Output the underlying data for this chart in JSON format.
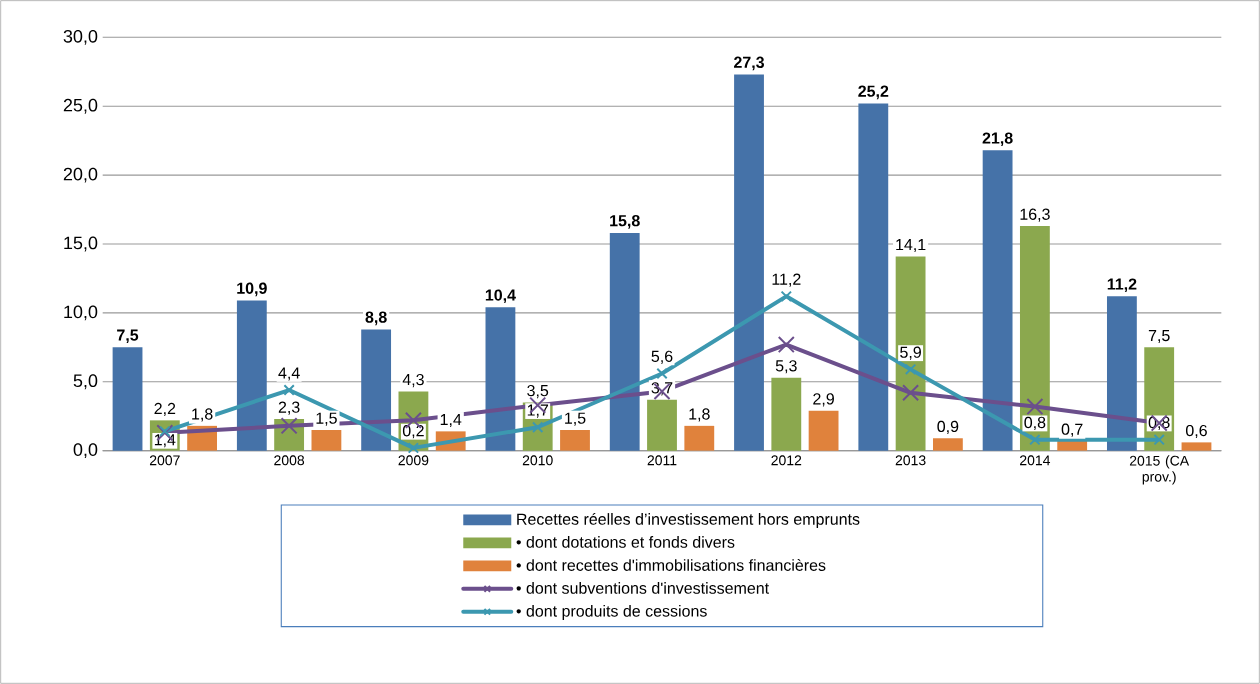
{
  "chart_data": {
    "type": "bar",
    "categories": [
      "2007",
      "2008",
      "2009",
      "2010",
      "2011",
      "2012",
      "2013",
      "2014",
      "2015 (CA prov.)"
    ],
    "series": [
      {
        "name": "Recettes  réelles d’investissement hors emprunts",
        "color": "#4572a8",
        "values": [
          7.5,
          10.9,
          8.8,
          10.4,
          15.8,
          27.3,
          25.2,
          21.8,
          11.2
        ],
        "value_labels": [
          "7,5",
          "10,9",
          "8,8",
          "10,4",
          "15,8",
          "27,3",
          "25,2",
          "21,8",
          "11,2"
        ]
      },
      {
        "name": "•  dont dotations et fonds divers",
        "color": "#8ba84e",
        "values": [
          2.2,
          2.3,
          4.3,
          3.5,
          3.7,
          5.3,
          14.1,
          16.3,
          7.5
        ],
        "value_labels": [
          "2,2",
          "2,3",
          "4,3",
          "3,5",
          "3,7",
          "5,3",
          "14,1",
          "16,3",
          "7,5"
        ]
      },
      {
        "name": "• dont recettes d'immobilisations financières",
        "color": "#e0823c",
        "values": [
          1.8,
          1.5,
          1.4,
          1.5,
          1.8,
          2.9,
          0.9,
          0.7,
          0.6
        ],
        "value_labels": [
          "1,8",
          "1,5",
          "1,4",
          "1,5",
          "1,8",
          "2,9",
          "0,9",
          "0,7",
          "0,6"
        ]
      },
      {
        "name": "•  dont subventions d'investissement",
        "type": "line",
        "marker": "cross",
        "color": "#6b4f8c",
        "values": [
          1.3,
          1.8,
          2.2,
          3.3,
          4.3,
          7.7,
          4.2,
          3.2,
          2.0
        ]
      },
      {
        "name": "• dont produits de cessions",
        "type": "line",
        "marker": "cross",
        "color": "#3c98b0",
        "values": [
          1.4,
          4.4,
          0.2,
          1.7,
          5.6,
          11.2,
          5.9,
          0.8,
          0.8
        ],
        "value_labels": [
          "1,4",
          "4,4",
          "0,2",
          "1,7",
          "5,6",
          "11,2",
          "5,9",
          "0,8",
          "0,8"
        ]
      }
    ],
    "ylim": [
      0,
      30
    ],
    "yticks": [
      {
        "value": 0,
        "label": "0,0"
      },
      {
        "value": 5,
        "label": "5,0"
      },
      {
        "value": 10,
        "label": "10,0"
      },
      {
        "value": 15,
        "label": "15,0"
      },
      {
        "value": 20,
        "label": "20,0"
      },
      {
        "value": 25,
        "label": "25,0"
      },
      {
        "value": 30,
        "label": "30,0"
      }
    ],
    "grid": "y",
    "legend": "bottom"
  }
}
